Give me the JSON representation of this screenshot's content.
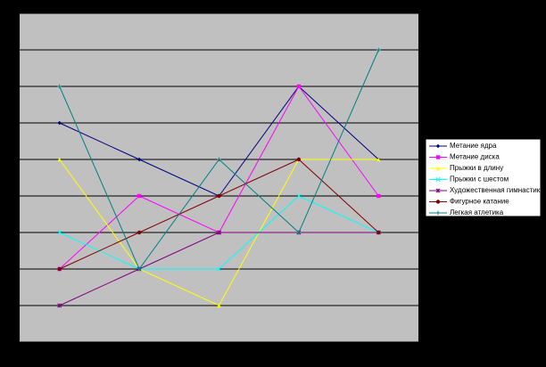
{
  "chart_data": {
    "type": "line",
    "categories": [
      null,
      null,
      null,
      null,
      null
    ],
    "ylim": [
      0,
      9
    ],
    "yticks": [
      0,
      1,
      2,
      3,
      4,
      5,
      6,
      7,
      8,
      9
    ],
    "grid": true,
    "legend": "right",
    "series": [
      {
        "name": "Метание ядра",
        "color": "#000080",
        "values": [
          6,
          5,
          4,
          7,
          5
        ]
      },
      {
        "name": "Метание диска",
        "color": "#ff00ff",
        "values": [
          2,
          4,
          3,
          7,
          4
        ]
      },
      {
        "name": "Прыжки в длину",
        "color": "#ffff00",
        "values": [
          5,
          2,
          1,
          5,
          5
        ]
      },
      {
        "name": "Прыжки с шестом",
        "color": "#00ffff",
        "values": [
          3,
          2,
          2,
          4,
          3
        ]
      },
      {
        "name": "Художественная гимнастика",
        "color": "#800080",
        "values": [
          1,
          2,
          3,
          3,
          3
        ]
      },
      {
        "name": "Фигурное катание",
        "color": "#800000",
        "values": [
          2,
          3,
          4,
          5,
          3
        ]
      },
      {
        "name": "Легкая атлетика",
        "color": "#008080",
        "values": [
          7,
          2,
          5,
          3,
          8
        ]
      }
    ]
  }
}
